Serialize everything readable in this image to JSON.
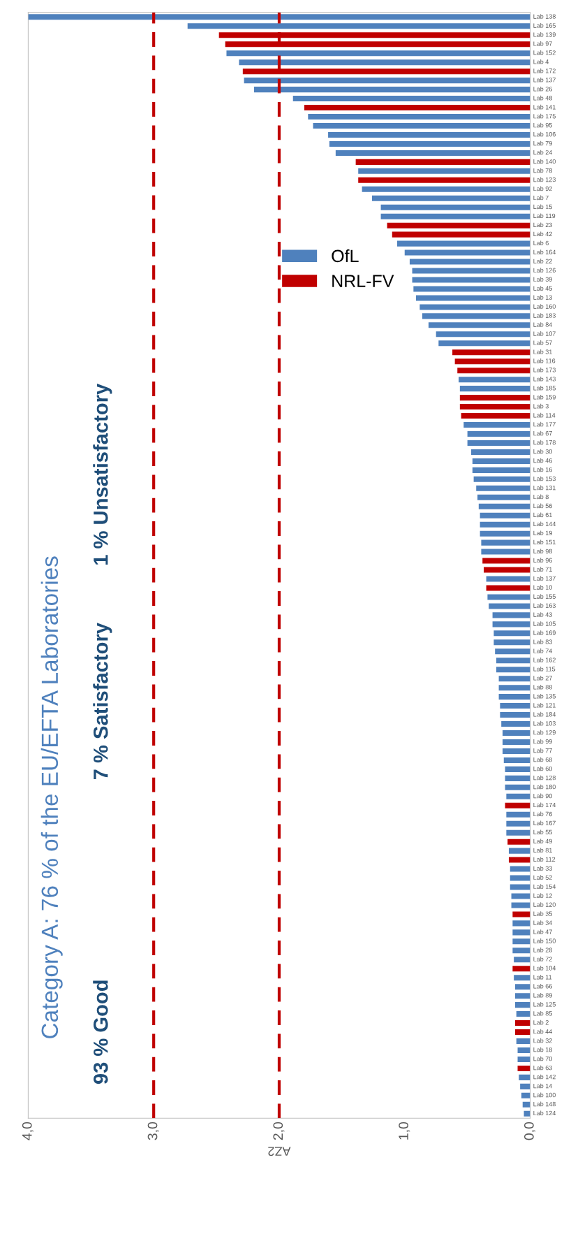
{
  "chart_data": {
    "type": "bar",
    "orientation": "horizontal",
    "title": "Category A: 76 % of the EU/EFTA Laboratories",
    "xlabel": "AZ2",
    "annotations": [
      "93 % Good",
      "7 % Satisfactory",
      "1 % Unsatisfactory"
    ],
    "categories": [
      "Lab 138",
      "Lab 165",
      "Lab 139",
      "Lab 97",
      "Lab 152",
      "Lab 4",
      "Lab 172",
      "Lab 137",
      "Lab 26",
      "Lab 48",
      "Lab 141",
      "Lab 175",
      "Lab 95",
      "Lab 106",
      "Lab 79",
      "Lab 24",
      "Lab 140",
      "Lab 78",
      "Lab 123",
      "Lab 92",
      "Lab 7",
      "Lab 15",
      "Lab 119",
      "Lab 23",
      "Lab 42",
      "Lab 6",
      "Lab 164",
      "Lab 22",
      "Lab 126",
      "Lab 39",
      "Lab 45",
      "Lab 13",
      "Lab 160",
      "Lab 183",
      "Lab 84",
      "Lab 107",
      "Lab 57",
      "Lab 31",
      "Lab 116",
      "Lab 173",
      "Lab 143",
      "Lab 185",
      "Lab 159",
      "Lab 3",
      "Lab 114",
      "Lab 177",
      "Lab 67",
      "Lab 178",
      "Lab 30",
      "Lab 46",
      "Lab 16",
      "Lab 153",
      "Lab 131",
      "Lab 8",
      "Lab 56",
      "Lab 61",
      "Lab 144",
      "Lab 19",
      "Lab 151",
      "Lab 98",
      "Lab 96",
      "Lab 71",
      "Lab 137",
      "Lab 10",
      "Lab 155",
      "Lab 163",
      "Lab 43",
      "Lab 105",
      "Lab 169",
      "Lab 83",
      "Lab 74",
      "Lab 162",
      "Lab 115",
      "Lab 27",
      "Lab 88",
      "Lab 135",
      "Lab 121",
      "Lab 184",
      "Lab 103",
      "Lab 129",
      "Lab 99",
      "Lab 77",
      "Lab 68",
      "Lab 60",
      "Lab 128",
      "Lab 180",
      "Lab 90",
      "Lab 174",
      "Lab 76",
      "Lab 167",
      "Lab 55",
      "Lab 49",
      "Lab 81",
      "Lab 112",
      "Lab 33",
      "Lab 52",
      "Lab 154",
      "Lab 12",
      "Lab 120",
      "Lab 35",
      "Lab 34",
      "Lab 47",
      "Lab 150",
      "Lab 28",
      "Lab 72",
      "Lab 104",
      "Lab 11",
      "Lab 66",
      "Lab 89",
      "Lab 125",
      "Lab 85",
      "Lab 2",
      "Lab 44",
      "Lab 32",
      "Lab 18",
      "Lab 70",
      "Lab 63",
      "Lab 142",
      "Lab 14",
      "Lab 100",
      "Lab 148",
      "Lab 124"
    ],
    "series": [
      {
        "name": "OfL",
        "color": "#4f81bd",
        "values": [
          4.0,
          2.73,
          null,
          null,
          2.42,
          2.32,
          null,
          2.28,
          2.2,
          1.89,
          null,
          1.77,
          1.73,
          1.61,
          1.6,
          1.55,
          null,
          1.37,
          null,
          1.34,
          1.26,
          1.19,
          1.19,
          null,
          null,
          1.06,
          1.0,
          0.96,
          0.94,
          0.94,
          0.93,
          0.91,
          0.88,
          0.86,
          0.81,
          0.75,
          0.73,
          null,
          null,
          null,
          0.57,
          0.56,
          null,
          null,
          null,
          0.53,
          0.5,
          0.5,
          0.47,
          0.46,
          0.46,
          0.45,
          0.43,
          0.42,
          0.41,
          0.4,
          0.4,
          0.4,
          0.39,
          0.39,
          null,
          null,
          0.35,
          null,
          0.34,
          0.33,
          0.3,
          0.3,
          0.29,
          0.29,
          0.28,
          0.27,
          0.27,
          0.25,
          0.25,
          0.25,
          0.24,
          0.24,
          0.23,
          0.22,
          0.22,
          0.22,
          0.21,
          0.2,
          0.2,
          0.2,
          0.19,
          null,
          0.19,
          0.19,
          0.19,
          null,
          0.17,
          null,
          0.16,
          0.16,
          0.16,
          0.15,
          0.15,
          null,
          0.14,
          0.14,
          0.14,
          0.14,
          0.13,
          null,
          0.13,
          0.12,
          0.12,
          0.12,
          0.11,
          null,
          null,
          0.11,
          0.1,
          0.1,
          null,
          0.09,
          0.08,
          0.07,
          0.06,
          0.05
        ]
      },
      {
        "name": "NRL-FV",
        "color": "#c00000",
        "values": [
          null,
          null,
          2.48,
          2.43,
          null,
          null,
          2.29,
          null,
          null,
          null,
          1.8,
          null,
          null,
          null,
          null,
          null,
          1.39,
          null,
          1.37,
          null,
          null,
          null,
          null,
          1.14,
          1.1,
          null,
          null,
          null,
          null,
          null,
          null,
          null,
          null,
          null,
          null,
          null,
          null,
          0.62,
          0.6,
          0.58,
          null,
          null,
          0.56,
          0.56,
          0.55,
          null,
          null,
          null,
          null,
          null,
          null,
          null,
          null,
          null,
          null,
          null,
          null,
          null,
          null,
          null,
          0.38,
          0.37,
          null,
          0.35,
          null,
          null,
          null,
          null,
          null,
          null,
          null,
          null,
          null,
          null,
          null,
          null,
          null,
          null,
          null,
          null,
          null,
          null,
          null,
          null,
          null,
          null,
          null,
          0.2,
          null,
          null,
          null,
          0.18,
          null,
          0.17,
          null,
          null,
          null,
          null,
          null,
          0.14,
          null,
          null,
          null,
          null,
          null,
          0.14,
          null,
          null,
          null,
          null,
          null,
          0.12,
          0.12,
          null,
          null,
          null,
          0.1,
          null,
          null,
          null,
          null,
          null
        ]
      }
    ],
    "xlim": [
      4,
      0
    ],
    "xticks": [
      {
        "value": 4,
        "label": "4,0"
      },
      {
        "value": 3,
        "label": "3,0"
      },
      {
        "value": 2,
        "label": "2,0"
      },
      {
        "value": 1,
        "label": "1,0"
      },
      {
        "value": 0,
        "label": "0,0"
      }
    ],
    "ref_lines": [
      {
        "axis": "x",
        "value": 3,
        "color": "#c00000",
        "line_style": "dashed"
      },
      {
        "axis": "x",
        "value": 2,
        "color": "#c00000",
        "line_style": "dashed"
      }
    ],
    "legend": "top right"
  }
}
